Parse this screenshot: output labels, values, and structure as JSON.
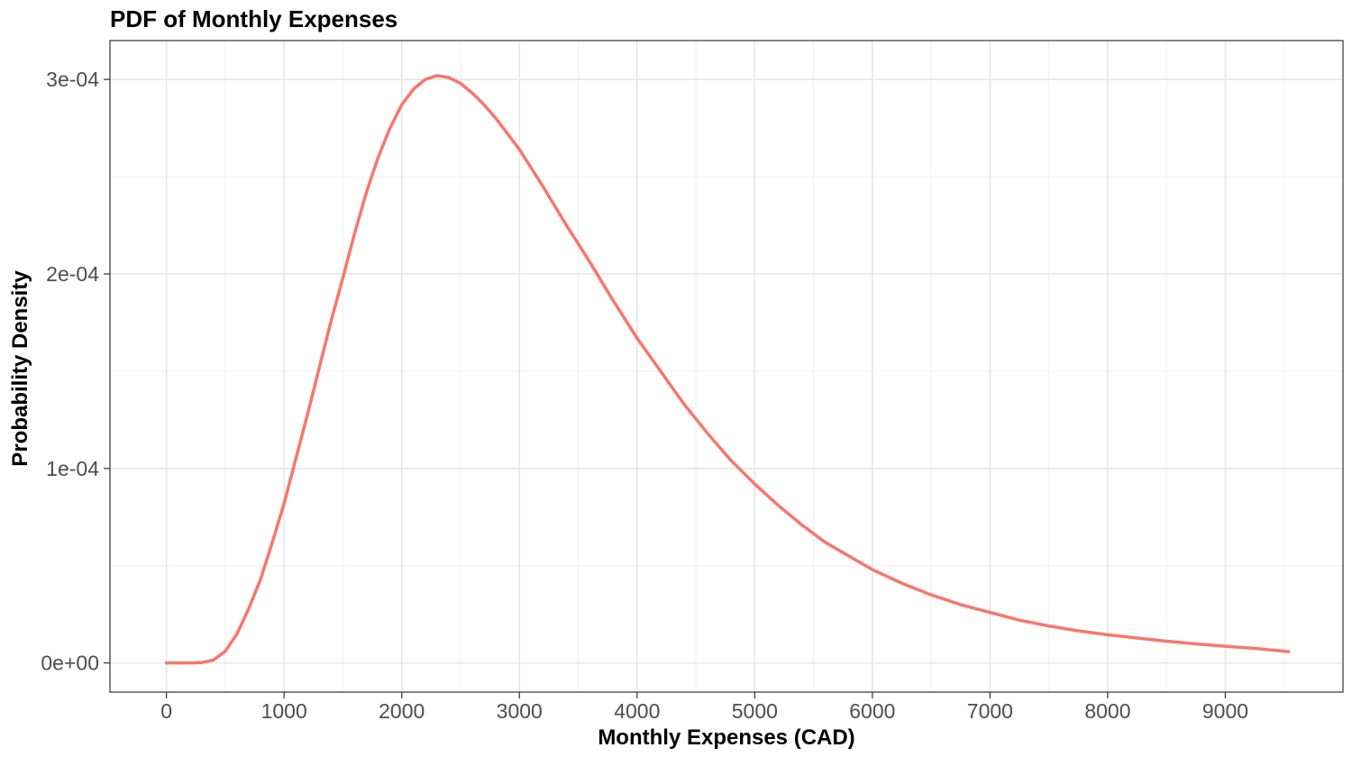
{
  "chart_data": {
    "type": "line",
    "title": "PDF of Monthly Expenses",
    "xlabel": "Monthly Expenses (CAD)",
    "ylabel": "Probability Density",
    "xlim": [
      -480,
      10000
    ],
    "ylim": [
      -1.5e-05,
      0.00032
    ],
    "x_ticks": [
      0,
      1000,
      2000,
      3000,
      4000,
      5000,
      6000,
      7000,
      8000,
      9000
    ],
    "x_tick_labels": [
      "0",
      "1000",
      "2000",
      "3000",
      "4000",
      "5000",
      "6000",
      "7000",
      "8000",
      "9000"
    ],
    "y_ticks": [
      0,
      0.0001,
      0.0002,
      0.0003
    ],
    "y_tick_labels": [
      "0e+00",
      "1e-04",
      "2e-04",
      "3e-04"
    ],
    "grid": true,
    "series": [
      {
        "color": "#F8766D",
        "x": [
          0,
          100,
          200,
          300,
          400,
          500,
          600,
          700,
          800,
          900,
          1000,
          1100,
          1200,
          1300,
          1400,
          1500,
          1600,
          1700,
          1800,
          1900,
          2000,
          2100,
          2200,
          2300,
          2400,
          2500,
          2600,
          2700,
          2800,
          2900,
          3000,
          3200,
          3400,
          3600,
          3800,
          4000,
          4200,
          4400,
          4600,
          4800,
          5000,
          5200,
          5400,
          5600,
          5800,
          6000,
          6250,
          6500,
          6750,
          7000,
          7250,
          7500,
          7750,
          8000,
          8250,
          8500,
          8750,
          9000,
          9250,
          9536
        ],
        "y": [
          0,
          0,
          0,
          2e-07,
          1.5e-06,
          6e-06,
          1.5e-05,
          2.8e-05,
          4.3e-05,
          6.2e-05,
          8.2e-05,
          0.000105,
          0.000128,
          0.000152,
          0.000176,
          0.000198,
          0.000221,
          0.000242,
          0.00026,
          0.000275,
          0.000287,
          0.000295,
          0.0003,
          0.000302,
          0.000301,
          0.000298,
          0.000293,
          0.000287,
          0.00028,
          0.000272,
          0.000264,
          0.000245,
          0.000225,
          0.000206,
          0.000186,
          0.000167,
          0.00015,
          0.000133,
          0.000118,
          0.000104,
          9.2e-05,
          8.1e-05,
          7.1e-05,
          6.2e-05,
          5.5e-05,
          4.8e-05,
          4.1e-05,
          3.5e-05,
          3e-05,
          2.6e-05,
          2.2e-05,
          1.9e-05,
          1.65e-05,
          1.45e-05,
          1.28e-05,
          1.12e-05,
          9.8e-06,
          8.6e-06,
          7.5e-06,
          5.8e-06
        ]
      }
    ]
  }
}
